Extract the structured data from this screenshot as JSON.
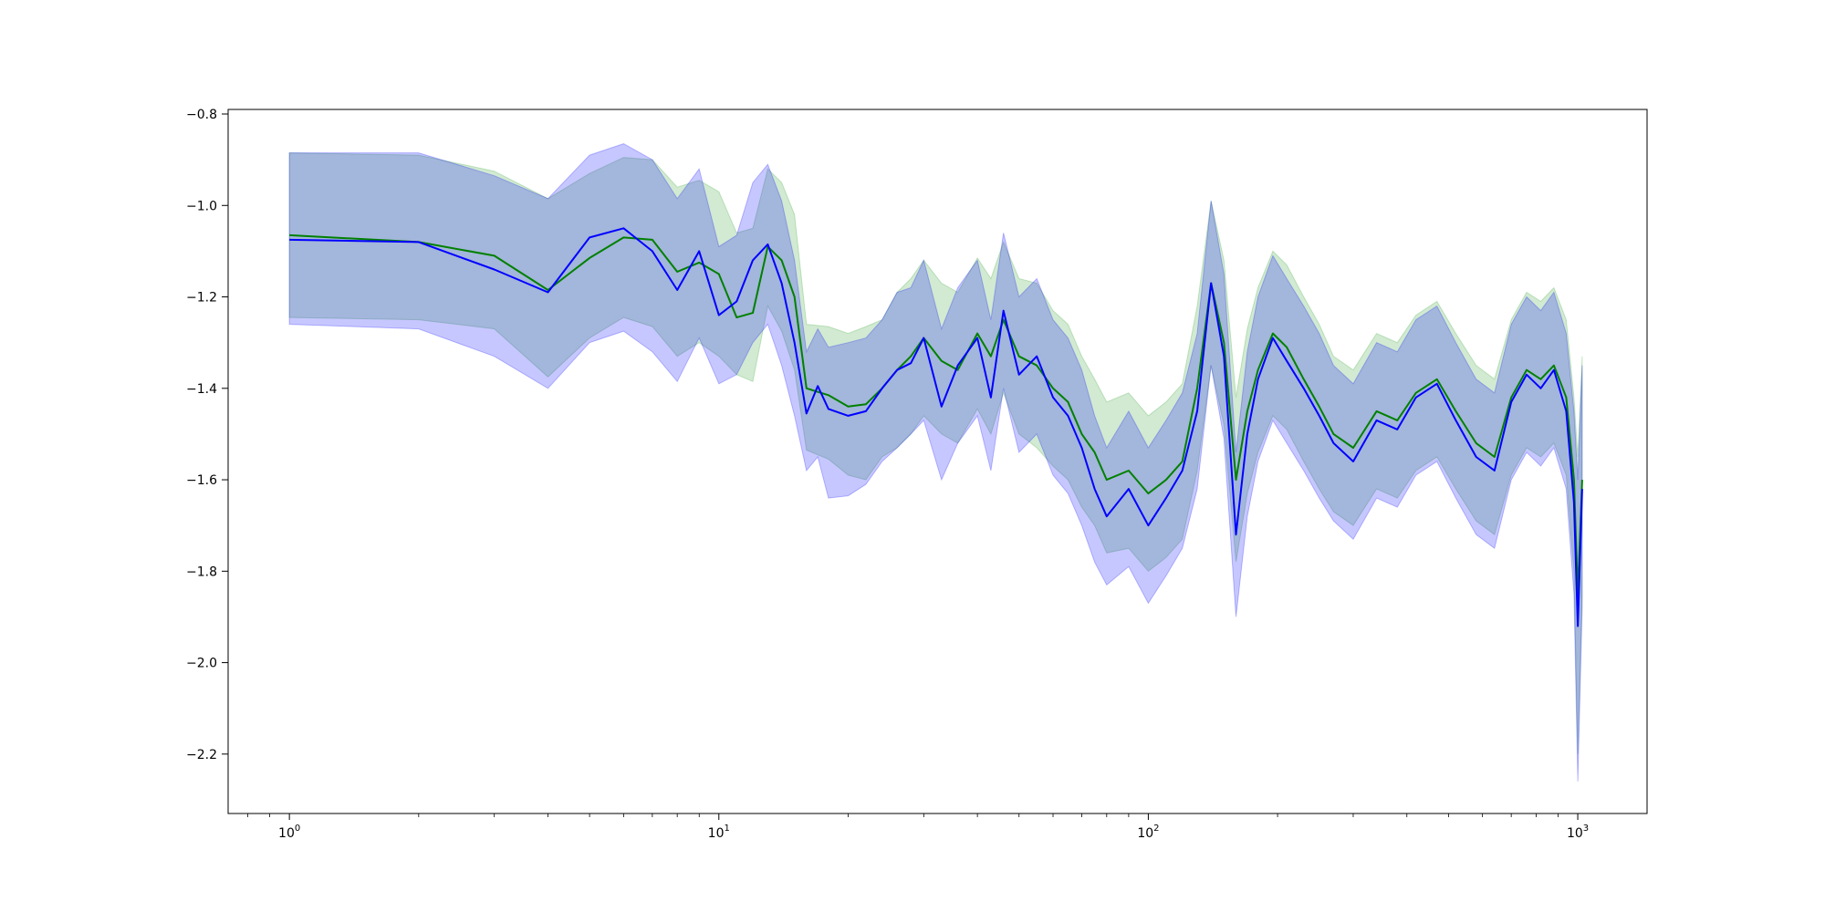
{
  "chart_data": {
    "type": "line",
    "title": "",
    "xlabel": "",
    "ylabel": "",
    "xscale": "log",
    "xlim": [
      0.72,
      1450
    ],
    "ylim": [
      -2.33,
      -0.79
    ],
    "grid": false,
    "legend": "none",
    "x_ticks": [
      1,
      10,
      100,
      1000
    ],
    "x_tick_labels": [
      {
        "base": "10",
        "exp": "0"
      },
      {
        "base": "10",
        "exp": "1"
      },
      {
        "base": "10",
        "exp": "2"
      },
      {
        "base": "10",
        "exp": "3"
      }
    ],
    "y_ticks": [
      -0.8,
      -1.0,
      -1.2,
      -1.4,
      -1.6,
      -1.8,
      -2.0,
      -2.2
    ],
    "y_tick_labels": [
      "−0.8",
      "−1.0",
      "−1.2",
      "−1.4",
      "−1.6",
      "−1.8",
      "−2.0",
      "−2.2"
    ],
    "series": [
      {
        "color": "#008000",
        "band_color": "#2ca02c",
        "points": [
          [
            1,
            -1.065,
            -1.245,
            -0.885
          ],
          [
            2,
            -1.08,
            -1.25,
            -0.89
          ],
          [
            3,
            -1.11,
            -1.27,
            -0.925
          ],
          [
            4,
            -1.185,
            -1.375,
            -0.985
          ],
          [
            5,
            -1.115,
            -1.29,
            -0.93
          ],
          [
            6,
            -1.07,
            -1.245,
            -0.895
          ],
          [
            7,
            -1.075,
            -1.265,
            -0.9
          ],
          [
            8,
            -1.145,
            -1.33,
            -0.96
          ],
          [
            9,
            -1.125,
            -1.3,
            -0.945
          ],
          [
            10,
            -1.15,
            -1.33,
            -0.97
          ],
          [
            11,
            -1.245,
            -1.37,
            -1.06
          ],
          [
            12,
            -1.235,
            -1.385,
            -1.05
          ],
          [
            13,
            -1.09,
            -1.22,
            -0.92
          ],
          [
            14,
            -1.12,
            -1.275,
            -0.95
          ],
          [
            15,
            -1.2,
            -1.36,
            -1.02
          ],
          [
            16,
            -1.4,
            -1.535,
            -1.26
          ],
          [
            18,
            -1.415,
            -1.555,
            -1.265
          ],
          [
            20,
            -1.44,
            -1.59,
            -1.28
          ],
          [
            22,
            -1.435,
            -1.6,
            -1.265
          ],
          [
            24,
            -1.4,
            -1.55,
            -1.25
          ],
          [
            26,
            -1.36,
            -1.53,
            -1.19
          ],
          [
            28,
            -1.33,
            -1.5,
            -1.16
          ],
          [
            30,
            -1.29,
            -1.46,
            -1.12
          ],
          [
            33,
            -1.34,
            -1.5,
            -1.17
          ],
          [
            36,
            -1.36,
            -1.52,
            -1.19
          ],
          [
            40,
            -1.28,
            -1.445,
            -1.115
          ],
          [
            43,
            -1.33,
            -1.5,
            -1.16
          ],
          [
            46,
            -1.25,
            -1.41,
            -1.08
          ],
          [
            50,
            -1.33,
            -1.5,
            -1.16
          ],
          [
            55,
            -1.35,
            -1.53,
            -1.17
          ],
          [
            60,
            -1.4,
            -1.57,
            -1.23
          ],
          [
            65,
            -1.43,
            -1.6,
            -1.26
          ],
          [
            70,
            -1.5,
            -1.66,
            -1.33
          ],
          [
            75,
            -1.54,
            -1.7,
            -1.38
          ],
          [
            80,
            -1.6,
            -1.76,
            -1.43
          ],
          [
            90,
            -1.58,
            -1.75,
            -1.41
          ],
          [
            100,
            -1.63,
            -1.8,
            -1.46
          ],
          [
            110,
            -1.6,
            -1.77,
            -1.43
          ],
          [
            120,
            -1.56,
            -1.73,
            -1.39
          ],
          [
            130,
            -1.4,
            -1.58,
            -1.22
          ],
          [
            140,
            -1.17,
            -1.35,
            -0.99
          ],
          [
            150,
            -1.3,
            -1.48,
            -1.12
          ],
          [
            160,
            -1.6,
            -1.78,
            -1.42
          ],
          [
            170,
            -1.45,
            -1.63,
            -1.27
          ],
          [
            180,
            -1.36,
            -1.54,
            -1.18
          ],
          [
            195,
            -1.28,
            -1.46,
            -1.1
          ],
          [
            210,
            -1.31,
            -1.49,
            -1.13
          ],
          [
            230,
            -1.38,
            -1.56,
            -1.2
          ],
          [
            250,
            -1.44,
            -1.62,
            -1.26
          ],
          [
            270,
            -1.5,
            -1.67,
            -1.33
          ],
          [
            300,
            -1.53,
            -1.7,
            -1.36
          ],
          [
            340,
            -1.45,
            -1.62,
            -1.28
          ],
          [
            380,
            -1.47,
            -1.64,
            -1.3
          ],
          [
            420,
            -1.41,
            -1.58,
            -1.24
          ],
          [
            470,
            -1.38,
            -1.55,
            -1.21
          ],
          [
            520,
            -1.45,
            -1.62,
            -1.28
          ],
          [
            580,
            -1.52,
            -1.69,
            -1.35
          ],
          [
            640,
            -1.55,
            -1.72,
            -1.38
          ],
          [
            700,
            -1.42,
            -1.59,
            -1.25
          ],
          [
            760,
            -1.36,
            -1.53,
            -1.19
          ],
          [
            820,
            -1.38,
            -1.55,
            -1.21
          ],
          [
            880,
            -1.35,
            -1.52,
            -1.18
          ],
          [
            940,
            -1.42,
            -1.59,
            -1.25
          ],
          [
            980,
            -1.6,
            -1.8,
            -1.42
          ],
          [
            1000,
            -1.85,
            -2.2,
            -1.55
          ],
          [
            1024,
            -1.6,
            -1.85,
            -1.33
          ]
        ]
      },
      {
        "color": "#0000ff",
        "band_color": "#0000ff",
        "points": [
          [
            1,
            -1.075,
            -1.26,
            -0.885
          ],
          [
            2,
            -1.08,
            -1.27,
            -0.885
          ],
          [
            3,
            -1.14,
            -1.33,
            -0.935
          ],
          [
            4,
            -1.19,
            -1.4,
            -0.985
          ],
          [
            5,
            -1.07,
            -1.3,
            -0.89
          ],
          [
            6,
            -1.05,
            -1.275,
            -0.865
          ],
          [
            7,
            -1.1,
            -1.32,
            -0.9
          ],
          [
            8,
            -1.185,
            -1.385,
            -0.985
          ],
          [
            9,
            -1.1,
            -1.29,
            -0.92
          ],
          [
            10,
            -1.24,
            -1.39,
            -1.09
          ],
          [
            11,
            -1.21,
            -1.37,
            -1.065
          ],
          [
            12,
            -1.12,
            -1.3,
            -0.95
          ],
          [
            13,
            -1.085,
            -1.26,
            -0.91
          ],
          [
            14,
            -1.17,
            -1.35,
            -0.99
          ],
          [
            15,
            -1.3,
            -1.46,
            -1.12
          ],
          [
            16,
            -1.455,
            -1.58,
            -1.32
          ],
          [
            17,
            -1.395,
            -1.55,
            -1.27
          ],
          [
            18,
            -1.445,
            -1.64,
            -1.31
          ],
          [
            20,
            -1.46,
            -1.635,
            -1.3
          ],
          [
            22,
            -1.45,
            -1.61,
            -1.29
          ],
          [
            24,
            -1.4,
            -1.56,
            -1.25
          ],
          [
            26,
            -1.36,
            -1.53,
            -1.19
          ],
          [
            28,
            -1.345,
            -1.5,
            -1.18
          ],
          [
            30,
            -1.29,
            -1.47,
            -1.12
          ],
          [
            33,
            -1.44,
            -1.6,
            -1.27
          ],
          [
            36,
            -1.35,
            -1.52,
            -1.18
          ],
          [
            40,
            -1.29,
            -1.46,
            -1.12
          ],
          [
            43,
            -1.42,
            -1.58,
            -1.25
          ],
          [
            46,
            -1.23,
            -1.4,
            -1.06
          ],
          [
            50,
            -1.37,
            -1.54,
            -1.2
          ],
          [
            55,
            -1.33,
            -1.5,
            -1.16
          ],
          [
            60,
            -1.42,
            -1.59,
            -1.25
          ],
          [
            65,
            -1.46,
            -1.63,
            -1.29
          ],
          [
            70,
            -1.53,
            -1.7,
            -1.36
          ],
          [
            75,
            -1.62,
            -1.78,
            -1.46
          ],
          [
            80,
            -1.68,
            -1.83,
            -1.53
          ],
          [
            90,
            -1.62,
            -1.79,
            -1.45
          ],
          [
            100,
            -1.7,
            -1.87,
            -1.53
          ],
          [
            110,
            -1.64,
            -1.81,
            -1.47
          ],
          [
            120,
            -1.58,
            -1.75,
            -1.41
          ],
          [
            130,
            -1.45,
            -1.62,
            -1.28
          ],
          [
            140,
            -1.17,
            -1.35,
            -0.99
          ],
          [
            150,
            -1.33,
            -1.51,
            -1.15
          ],
          [
            160,
            -1.72,
            -1.9,
            -1.54
          ],
          [
            170,
            -1.5,
            -1.68,
            -1.32
          ],
          [
            180,
            -1.38,
            -1.56,
            -1.2
          ],
          [
            195,
            -1.29,
            -1.47,
            -1.11
          ],
          [
            210,
            -1.34,
            -1.52,
            -1.16
          ],
          [
            230,
            -1.4,
            -1.58,
            -1.22
          ],
          [
            250,
            -1.46,
            -1.64,
            -1.28
          ],
          [
            270,
            -1.52,
            -1.69,
            -1.35
          ],
          [
            300,
            -1.56,
            -1.73,
            -1.39
          ],
          [
            340,
            -1.47,
            -1.64,
            -1.3
          ],
          [
            380,
            -1.49,
            -1.66,
            -1.32
          ],
          [
            420,
            -1.42,
            -1.59,
            -1.25
          ],
          [
            470,
            -1.39,
            -1.56,
            -1.22
          ],
          [
            520,
            -1.47,
            -1.64,
            -1.3
          ],
          [
            580,
            -1.55,
            -1.72,
            -1.38
          ],
          [
            640,
            -1.58,
            -1.75,
            -1.41
          ],
          [
            700,
            -1.43,
            -1.6,
            -1.26
          ],
          [
            760,
            -1.37,
            -1.54,
            -1.2
          ],
          [
            820,
            -1.4,
            -1.57,
            -1.23
          ],
          [
            880,
            -1.36,
            -1.53,
            -1.19
          ],
          [
            940,
            -1.45,
            -1.62,
            -1.28
          ],
          [
            980,
            -1.65,
            -1.85,
            -1.45
          ],
          [
            1000,
            -1.92,
            -2.26,
            -1.6
          ],
          [
            1024,
            -1.62,
            -1.88,
            -1.35
          ]
        ]
      }
    ]
  }
}
